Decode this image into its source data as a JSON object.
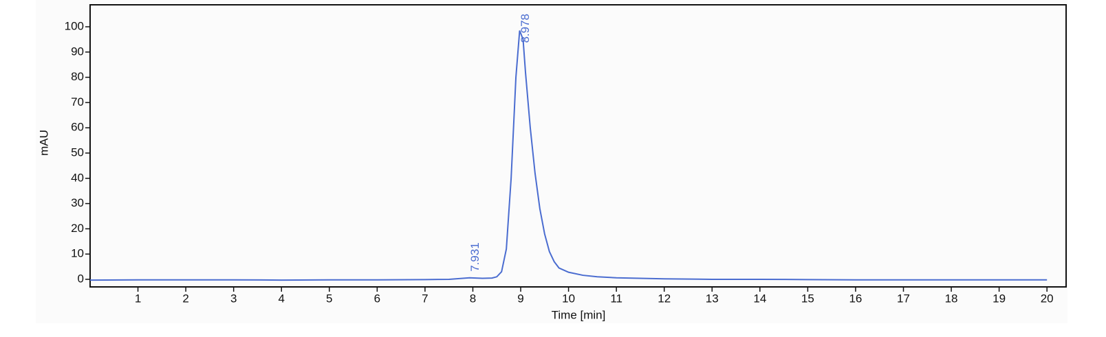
{
  "chart_data": {
    "type": "line",
    "x_label": "Time [min]",
    "y_label": "mAU",
    "color": "#4a6cd0",
    "x": [
      0,
      1,
      2,
      3,
      4,
      5,
      6,
      7,
      7.5,
      7.931,
      8.2,
      8.4,
      8.5,
      8.6,
      8.7,
      8.8,
      8.9,
      8.978,
      9.05,
      9.1,
      9.2,
      9.3,
      9.4,
      9.5,
      9.6,
      9.7,
      9.8,
      10,
      10.3,
      10.6,
      11,
      12,
      13,
      14,
      15,
      16,
      17,
      18,
      19,
      20
    ],
    "values": [
      -0.3,
      -0.2,
      -0.2,
      -0.2,
      -0.3,
      -0.2,
      -0.2,
      -0.1,
      0,
      0.6,
      0.4,
      0.5,
      1,
      3,
      12,
      40,
      80,
      98.5,
      95,
      82,
      60,
      42,
      28,
      18,
      11,
      7,
      4.5,
      2.8,
      1.6,
      1,
      0.6,
      0.2,
      0,
      0,
      -0.1,
      -0.2,
      -0.2,
      -0.2,
      -0.2,
      -0.2
    ],
    "peak_labels": [
      7.931,
      8.978
    ],
    "xlim": [
      0,
      20.4
    ],
    "ylim": [
      -3,
      108.7
    ],
    "xticks": [
      1,
      2,
      3,
      4,
      5,
      6,
      7,
      8,
      9,
      10,
      11,
      12,
      13,
      14,
      15,
      16,
      17,
      18,
      19,
      20
    ],
    "yticks": [
      0,
      10,
      20,
      30,
      40,
      50,
      60,
      70,
      80,
      90,
      100
    ]
  }
}
